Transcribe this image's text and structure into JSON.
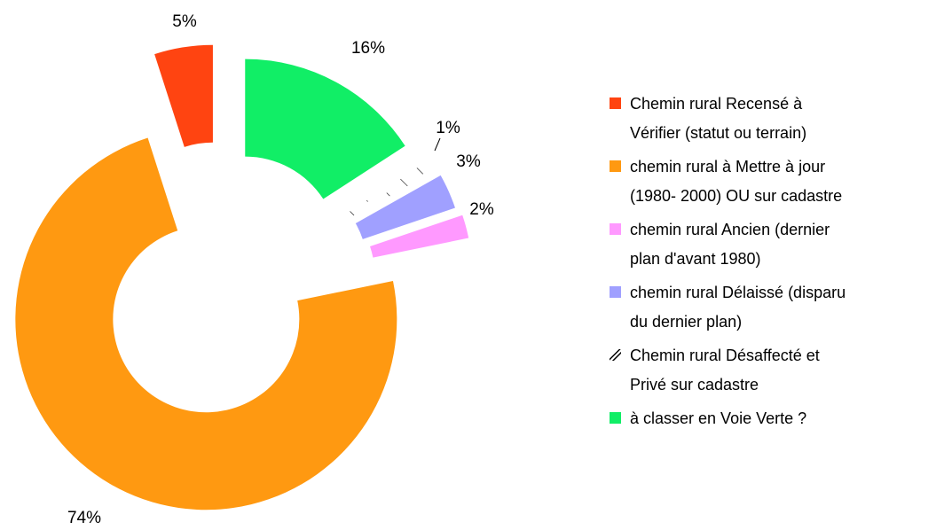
{
  "chart_data": {
    "type": "donut",
    "categories": [
      "Chemin rural Recensé à\nVérifier (statut ou terrain)",
      "chemin rural à Mettre à jour\n(1980- 2000) OU sur cadastre",
      "chemin rural Ancien (dernier\nplan d'avant 1980)",
      "chemin rural Délaissé (disparu\ndu dernier plan)",
      "Chemin rural Désaffecté et\nPrivé sur cadastre",
      "à classer en Voie Verte ?"
    ],
    "values": [
      5,
      74,
      2,
      3,
      1,
      16
    ],
    "value_labels": [
      "5%",
      "74%",
      "2%",
      "3%",
      "1%",
      "16%"
    ],
    "colors": [
      "#ff4411",
      "#ff9911",
      "#ff99ff",
      "#a0a0ff",
      "#ffffff",
      "#11ee66"
    ],
    "patterns": [
      null,
      null,
      null,
      null,
      "hatch",
      null
    ],
    "legend": "right"
  }
}
